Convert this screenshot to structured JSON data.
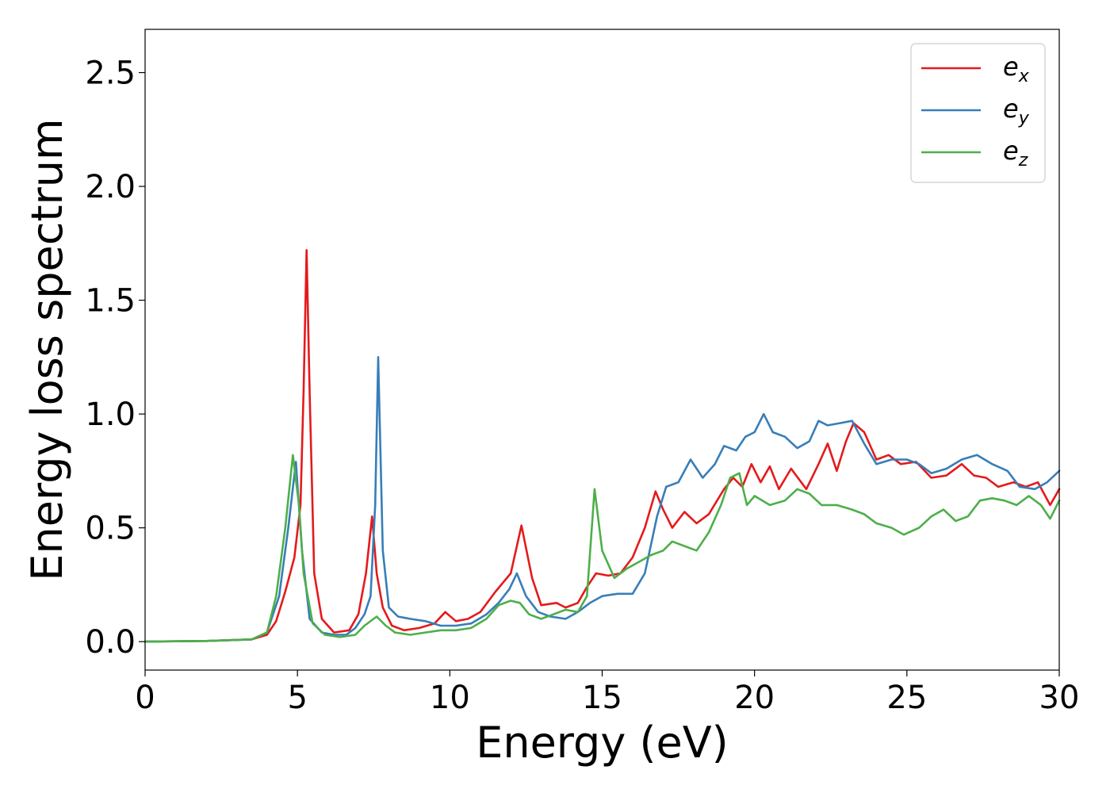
{
  "chart_data": {
    "type": "line",
    "title": "",
    "xlabel": "Energy (eV)",
    "ylabel": "Energy loss spectrum",
    "xlim": [
      0,
      30
    ],
    "ylim": [
      -0.125,
      2.69
    ],
    "xticks": [
      0,
      5,
      10,
      15,
      20,
      25,
      30
    ],
    "xtick_labels": [
      "0",
      "5",
      "10",
      "15",
      "20",
      "25",
      "30"
    ],
    "yticks": [
      0.0,
      0.5,
      1.0,
      1.5,
      2.0,
      2.5
    ],
    "ytick_labels": [
      "0.0",
      "0.5",
      "1.0",
      "1.5",
      "2.0",
      "2.5"
    ],
    "grid": false,
    "legend_position": "top-right",
    "series": [
      {
        "name": "e_x",
        "legend_base": "e",
        "legend_sub": "x",
        "color": "#e41a1c",
        "points": [
          [
            0,
            0.0
          ],
          [
            2,
            0.003
          ],
          [
            3.5,
            0.01
          ],
          [
            4.0,
            0.03
          ],
          [
            4.3,
            0.09
          ],
          [
            4.6,
            0.22
          ],
          [
            4.9,
            0.37
          ],
          [
            5.1,
            0.6
          ],
          [
            5.2,
            1.1
          ],
          [
            5.3,
            1.72
          ],
          [
            5.4,
            1.1
          ],
          [
            5.55,
            0.3
          ],
          [
            5.8,
            0.1
          ],
          [
            6.2,
            0.04
          ],
          [
            6.7,
            0.05
          ],
          [
            7.0,
            0.12
          ],
          [
            7.25,
            0.3
          ],
          [
            7.45,
            0.55
          ],
          [
            7.6,
            0.3
          ],
          [
            7.8,
            0.15
          ],
          [
            8.1,
            0.07
          ],
          [
            8.5,
            0.05
          ],
          [
            9.0,
            0.06
          ],
          [
            9.5,
            0.08
          ],
          [
            9.85,
            0.13
          ],
          [
            10.2,
            0.09
          ],
          [
            10.6,
            0.1
          ],
          [
            11.0,
            0.13
          ],
          [
            11.5,
            0.22
          ],
          [
            12.0,
            0.3
          ],
          [
            12.35,
            0.51
          ],
          [
            12.7,
            0.28
          ],
          [
            13.0,
            0.16
          ],
          [
            13.5,
            0.17
          ],
          [
            13.8,
            0.15
          ],
          [
            14.2,
            0.17
          ],
          [
            14.5,
            0.24
          ],
          [
            14.8,
            0.3
          ],
          [
            15.2,
            0.29
          ],
          [
            15.6,
            0.3
          ],
          [
            16.0,
            0.37
          ],
          [
            16.4,
            0.5
          ],
          [
            16.75,
            0.66
          ],
          [
            17.0,
            0.58
          ],
          [
            17.3,
            0.5
          ],
          [
            17.7,
            0.57
          ],
          [
            18.1,
            0.52
          ],
          [
            18.5,
            0.56
          ],
          [
            19.0,
            0.67
          ],
          [
            19.3,
            0.72
          ],
          [
            19.6,
            0.68
          ],
          [
            19.9,
            0.78
          ],
          [
            20.2,
            0.7
          ],
          [
            20.5,
            0.77
          ],
          [
            20.8,
            0.67
          ],
          [
            21.2,
            0.76
          ],
          [
            21.7,
            0.67
          ],
          [
            22.1,
            0.78
          ],
          [
            22.4,
            0.87
          ],
          [
            22.7,
            0.75
          ],
          [
            23.0,
            0.88
          ],
          [
            23.25,
            0.96
          ],
          [
            23.6,
            0.92
          ],
          [
            24.0,
            0.8
          ],
          [
            24.4,
            0.82
          ],
          [
            24.8,
            0.78
          ],
          [
            25.3,
            0.79
          ],
          [
            25.8,
            0.72
          ],
          [
            26.3,
            0.73
          ],
          [
            26.8,
            0.78
          ],
          [
            27.2,
            0.73
          ],
          [
            27.6,
            0.72
          ],
          [
            28.0,
            0.68
          ],
          [
            28.5,
            0.7
          ],
          [
            28.9,
            0.68
          ],
          [
            29.3,
            0.7
          ],
          [
            29.7,
            0.6
          ],
          [
            30.0,
            0.67
          ]
        ]
      },
      {
        "name": "e_y",
        "legend_base": "e",
        "legend_sub": "y",
        "color": "#377eb8",
        "points": [
          [
            0,
            0.0
          ],
          [
            2,
            0.003
          ],
          [
            3.5,
            0.01
          ],
          [
            4.0,
            0.04
          ],
          [
            4.4,
            0.2
          ],
          [
            4.7,
            0.5
          ],
          [
            4.95,
            0.79
          ],
          [
            5.15,
            0.4
          ],
          [
            5.4,
            0.1
          ],
          [
            5.8,
            0.04
          ],
          [
            6.2,
            0.03
          ],
          [
            6.6,
            0.03
          ],
          [
            6.9,
            0.06
          ],
          [
            7.2,
            0.12
          ],
          [
            7.4,
            0.2
          ],
          [
            7.55,
            0.6
          ],
          [
            7.65,
            1.25
          ],
          [
            7.8,
            0.4
          ],
          [
            8.0,
            0.15
          ],
          [
            8.3,
            0.11
          ],
          [
            8.7,
            0.1
          ],
          [
            9.2,
            0.09
          ],
          [
            9.7,
            0.07
          ],
          [
            10.2,
            0.07
          ],
          [
            10.7,
            0.08
          ],
          [
            11.2,
            0.12
          ],
          [
            11.6,
            0.17
          ],
          [
            11.95,
            0.23
          ],
          [
            12.2,
            0.3
          ],
          [
            12.5,
            0.2
          ],
          [
            12.9,
            0.13
          ],
          [
            13.3,
            0.11
          ],
          [
            13.8,
            0.1
          ],
          [
            14.2,
            0.13
          ],
          [
            14.6,
            0.17
          ],
          [
            15.0,
            0.2
          ],
          [
            15.5,
            0.21
          ],
          [
            16.0,
            0.21
          ],
          [
            16.4,
            0.3
          ],
          [
            16.8,
            0.55
          ],
          [
            17.1,
            0.68
          ],
          [
            17.5,
            0.7
          ],
          [
            17.9,
            0.8
          ],
          [
            18.3,
            0.72
          ],
          [
            18.7,
            0.78
          ],
          [
            19.0,
            0.86
          ],
          [
            19.4,
            0.84
          ],
          [
            19.7,
            0.9
          ],
          [
            20.0,
            0.92
          ],
          [
            20.3,
            1.0
          ],
          [
            20.6,
            0.92
          ],
          [
            21.0,
            0.9
          ],
          [
            21.4,
            0.85
          ],
          [
            21.8,
            0.88
          ],
          [
            22.1,
            0.97
          ],
          [
            22.4,
            0.95
          ],
          [
            22.8,
            0.96
          ],
          [
            23.2,
            0.97
          ],
          [
            23.6,
            0.87
          ],
          [
            24.0,
            0.78
          ],
          [
            24.5,
            0.8
          ],
          [
            25.0,
            0.8
          ],
          [
            25.4,
            0.78
          ],
          [
            25.8,
            0.74
          ],
          [
            26.3,
            0.76
          ],
          [
            26.8,
            0.8
          ],
          [
            27.3,
            0.82
          ],
          [
            27.8,
            0.78
          ],
          [
            28.3,
            0.75
          ],
          [
            28.7,
            0.68
          ],
          [
            29.2,
            0.67
          ],
          [
            29.6,
            0.7
          ],
          [
            30.0,
            0.75
          ]
        ]
      },
      {
        "name": "e_z",
        "legend_base": "e",
        "legend_sub": "z",
        "color": "#4daf4a",
        "points": [
          [
            0,
            0.0
          ],
          [
            2,
            0.003
          ],
          [
            3.5,
            0.01
          ],
          [
            4.0,
            0.04
          ],
          [
            4.3,
            0.2
          ],
          [
            4.6,
            0.5
          ],
          [
            4.85,
            0.82
          ],
          [
            5.05,
            0.6
          ],
          [
            5.2,
            0.3
          ],
          [
            5.5,
            0.08
          ],
          [
            5.9,
            0.03
          ],
          [
            6.4,
            0.02
          ],
          [
            6.9,
            0.03
          ],
          [
            7.2,
            0.07
          ],
          [
            7.6,
            0.11
          ],
          [
            7.9,
            0.07
          ],
          [
            8.2,
            0.04
          ],
          [
            8.7,
            0.03
          ],
          [
            9.2,
            0.04
          ],
          [
            9.7,
            0.05
          ],
          [
            10.2,
            0.05
          ],
          [
            10.7,
            0.06
          ],
          [
            11.2,
            0.1
          ],
          [
            11.6,
            0.16
          ],
          [
            12.0,
            0.18
          ],
          [
            12.3,
            0.17
          ],
          [
            12.6,
            0.12
          ],
          [
            13.0,
            0.1
          ],
          [
            13.4,
            0.12
          ],
          [
            13.8,
            0.14
          ],
          [
            14.2,
            0.13
          ],
          [
            14.5,
            0.2
          ],
          [
            14.75,
            0.67
          ],
          [
            15.0,
            0.4
          ],
          [
            15.4,
            0.28
          ],
          [
            15.8,
            0.32
          ],
          [
            16.2,
            0.35
          ],
          [
            16.6,
            0.38
          ],
          [
            17.0,
            0.4
          ],
          [
            17.3,
            0.44
          ],
          [
            17.7,
            0.42
          ],
          [
            18.1,
            0.4
          ],
          [
            18.5,
            0.48
          ],
          [
            18.9,
            0.6
          ],
          [
            19.2,
            0.72
          ],
          [
            19.5,
            0.74
          ],
          [
            19.75,
            0.6
          ],
          [
            20.0,
            0.64
          ],
          [
            20.5,
            0.6
          ],
          [
            21.0,
            0.62
          ],
          [
            21.4,
            0.67
          ],
          [
            21.8,
            0.65
          ],
          [
            22.2,
            0.6
          ],
          [
            22.7,
            0.6
          ],
          [
            23.2,
            0.58
          ],
          [
            23.6,
            0.56
          ],
          [
            24.0,
            0.52
          ],
          [
            24.5,
            0.5
          ],
          [
            24.9,
            0.47
          ],
          [
            25.4,
            0.5
          ],
          [
            25.8,
            0.55
          ],
          [
            26.2,
            0.58
          ],
          [
            26.6,
            0.53
          ],
          [
            27.0,
            0.55
          ],
          [
            27.4,
            0.62
          ],
          [
            27.8,
            0.63
          ],
          [
            28.2,
            0.62
          ],
          [
            28.6,
            0.6
          ],
          [
            29.0,
            0.64
          ],
          [
            29.4,
            0.6
          ],
          [
            29.7,
            0.54
          ],
          [
            30.0,
            0.62
          ]
        ]
      }
    ]
  }
}
